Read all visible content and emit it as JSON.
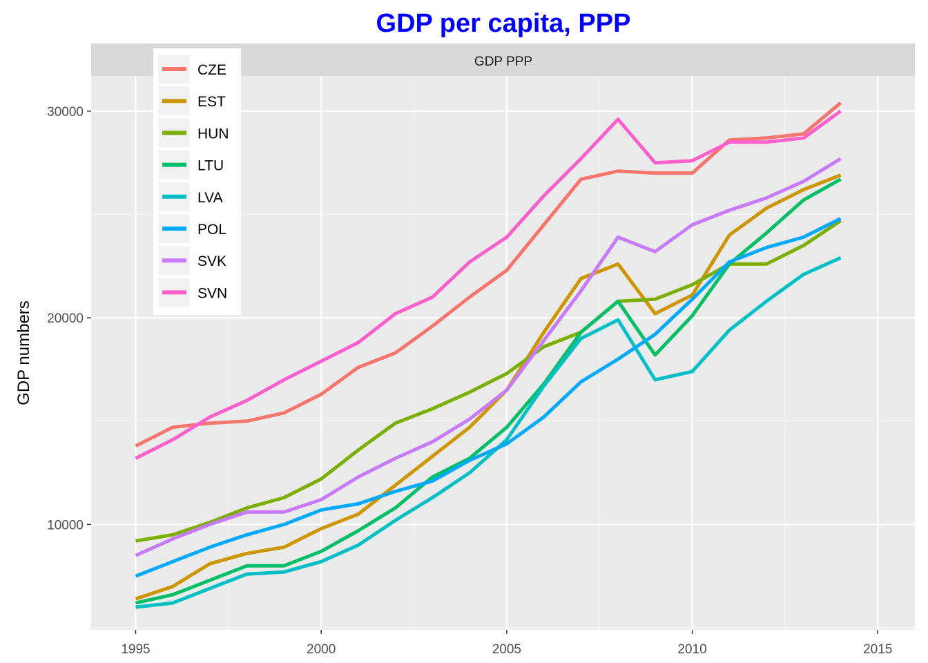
{
  "chart_data": {
    "type": "line",
    "title": "GDP per capita, PPP",
    "title_color": "#0000ff",
    "facet_label": "GDP PPP",
    "xlabel": "",
    "ylabel": "GDP numbers",
    "xlim": [
      1993.8,
      2016.0
    ],
    "ylim": [
      4900,
      31700
    ],
    "x_ticks": [
      1995,
      2000,
      2005,
      2010,
      2015
    ],
    "y_ticks": [
      10000,
      20000,
      30000
    ],
    "x_tick_labels": [
      "1995",
      "2000",
      "2005",
      "2010",
      "2015"
    ],
    "y_tick_labels": [
      "10000",
      "20000",
      "30000"
    ],
    "grid": true,
    "legend_position": "top-left",
    "x": [
      1995,
      1996,
      1997,
      1998,
      1999,
      2000,
      2001,
      2002,
      2003,
      2004,
      2005,
      2006,
      2007,
      2008,
      2009,
      2010,
      2011,
      2012,
      2013,
      2014
    ],
    "series": [
      {
        "name": "CZE",
        "color": "#f8766d",
        "values": [
          13800,
          14700,
          14900,
          15000,
          15400,
          16300,
          17600,
          18300,
          19600,
          21000,
          22300,
          24500,
          26700,
          27100,
          27000,
          27000,
          28600,
          28700,
          28900,
          30400
        ]
      },
      {
        "name": "EST",
        "color": "#cd9600",
        "values": [
          6400,
          7000,
          8100,
          8600,
          8900,
          9800,
          10500,
          11900,
          13300,
          14700,
          16500,
          19300,
          21900,
          22600,
          20200,
          21100,
          24000,
          25300,
          26200,
          26900
        ]
      },
      {
        "name": "HUN",
        "color": "#7cae00",
        "values": [
          9200,
          9500,
          10100,
          10800,
          11300,
          12200,
          13600,
          14900,
          15600,
          16400,
          17300,
          18600,
          19300,
          20800,
          20900,
          21600,
          22600,
          22600,
          23500,
          24700
        ]
      },
      {
        "name": "LTU",
        "color": "#00be67",
        "values": [
          6200,
          6600,
          7300,
          8000,
          8000,
          8700,
          9700,
          10800,
          12300,
          13200,
          14700,
          16800,
          19300,
          20800,
          18200,
          20100,
          22600,
          24100,
          25700,
          26700
        ]
      },
      {
        "name": "LVA",
        "color": "#00bfc4",
        "values": [
          6000,
          6200,
          6900,
          7600,
          7700,
          8200,
          9000,
          10200,
          11300,
          12500,
          14100,
          16700,
          19000,
          19900,
          17000,
          17400,
          19400,
          20800,
          22100,
          22900
        ]
      },
      {
        "name": "POL",
        "color": "#00a9ff",
        "values": [
          7500,
          8200,
          8900,
          9500,
          10000,
          10700,
          11000,
          11600,
          12100,
          13100,
          13900,
          15200,
          16900,
          18000,
          19200,
          20900,
          22700,
          23400,
          23900,
          24800
        ]
      },
      {
        "name": "SVK",
        "color": "#c77cff",
        "values": [
          8500,
          9300,
          10000,
          10600,
          10600,
          11200,
          12300,
          13200,
          14000,
          15100,
          16500,
          18900,
          21300,
          23900,
          23200,
          24500,
          25200,
          25800,
          26600,
          27700
        ]
      },
      {
        "name": "SVN",
        "color": "#ff61cc",
        "values": [
          13200,
          14100,
          15200,
          16000,
          17000,
          17900,
          18800,
          20200,
          21000,
          22700,
          23900,
          25900,
          27700,
          29600,
          27500,
          27600,
          28500,
          28500,
          28700,
          30000
        ]
      }
    ]
  }
}
